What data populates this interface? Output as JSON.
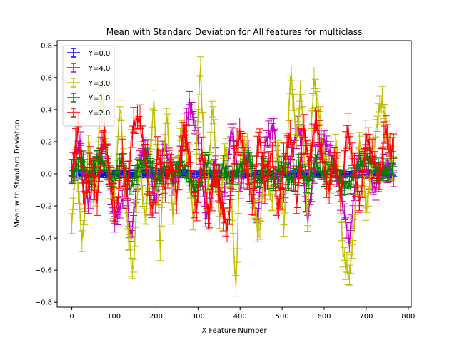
{
  "chart_data": {
    "type": "errorbar",
    "title": "Mean with Standard Deviation for All features for multiclass",
    "xlabel": "X Feature Number",
    "ylabel": "Mean with Standard Deviation",
    "xlim": [
      -35,
      807
    ],
    "ylim": [
      -0.83,
      0.83
    ],
    "xticks": [
      0,
      100,
      200,
      300,
      400,
      500,
      600,
      700,
      800
    ],
    "yticks": [
      -0.8,
      -0.6,
      -0.4,
      -0.2,
      0.0,
      0.2,
      0.4,
      0.6,
      0.8
    ],
    "xtick_labels": [
      "0",
      "100",
      "200",
      "300",
      "400",
      "500",
      "600",
      "700",
      "800"
    ],
    "ytick_labels": [
      "−0.8",
      "−0.6",
      "−0.4",
      "−0.2",
      "0.0",
      "0.2",
      "0.4",
      "0.6",
      "0.8"
    ],
    "legend_position": "top-left",
    "x_range": [
      0,
      767
    ],
    "series": [
      {
        "name": "Y=0.0",
        "color": "#0000ff",
        "key_points": [
          [
            0,
            0
          ],
          [
            100,
            0
          ],
          [
            200,
            0
          ],
          [
            300,
            0
          ],
          [
            400,
            0
          ],
          [
            500,
            0
          ],
          [
            600,
            0
          ],
          [
            700,
            0
          ],
          [
            767,
            0
          ]
        ],
        "std": 0.015
      },
      {
        "name": "Y=4.0",
        "color": "#bf00bf",
        "key_points": [
          [
            0,
            0.0
          ],
          [
            20,
            0.2
          ],
          [
            40,
            -0.2
          ],
          [
            60,
            0.1
          ],
          [
            80,
            0.2
          ],
          [
            100,
            -0.3
          ],
          [
            130,
            -0.1
          ],
          [
            140,
            -0.42
          ],
          [
            160,
            0.08
          ],
          [
            180,
            0.15
          ],
          [
            200,
            -0.2
          ],
          [
            220,
            0.2
          ],
          [
            240,
            -0.05
          ],
          [
            260,
            0.1
          ],
          [
            280,
            0.45
          ],
          [
            300,
            0.2
          ],
          [
            320,
            -0.3
          ],
          [
            340,
            0.1
          ],
          [
            360,
            -0.2
          ],
          [
            380,
            0.3
          ],
          [
            400,
            -0.1
          ],
          [
            420,
            0.15
          ],
          [
            440,
            -0.3
          ],
          [
            460,
            0.2
          ],
          [
            480,
            0.3
          ],
          [
            500,
            -0.2
          ],
          [
            520,
            0.1
          ],
          [
            540,
            0.3
          ],
          [
            560,
            -0.3
          ],
          [
            580,
            0.1
          ],
          [
            600,
            0.2
          ],
          [
            620,
            0.1
          ],
          [
            640,
            -0.15
          ],
          [
            660,
            -0.42
          ],
          [
            680,
            0.1
          ],
          [
            700,
            0.05
          ],
          [
            720,
            -0.1
          ],
          [
            740,
            0.05
          ],
          [
            767,
            0.0
          ]
        ],
        "std": 0.04
      },
      {
        "name": "Y=3.0",
        "color": "#bfbf00",
        "key_points": [
          [
            0,
            -0.3
          ],
          [
            10,
            0.1
          ],
          [
            25,
            -0.45
          ],
          [
            40,
            0.2
          ],
          [
            55,
            -0.2
          ],
          [
            70,
            0.55
          ],
          [
            85,
            0.1
          ],
          [
            100,
            -0.2
          ],
          [
            115,
            0.45
          ],
          [
            130,
            -0.25
          ],
          [
            145,
            -0.65
          ],
          [
            160,
            0.1
          ],
          [
            175,
            -0.3
          ],
          [
            195,
            0.45
          ],
          [
            210,
            -0.45
          ],
          [
            225,
            0.4
          ],
          [
            240,
            -0.25
          ],
          [
            260,
            0.3
          ],
          [
            275,
            0.1
          ],
          [
            290,
            -0.3
          ],
          [
            305,
            0.7
          ],
          [
            320,
            -0.2
          ],
          [
            335,
            0.45
          ],
          [
            350,
            -0.3
          ],
          [
            365,
            0.2
          ],
          [
            380,
            -0.2
          ],
          [
            390,
            -0.72
          ],
          [
            400,
            0.1
          ],
          [
            415,
            0.2
          ],
          [
            430,
            -0.1
          ],
          [
            445,
            -0.4
          ],
          [
            460,
            0.1
          ],
          [
            475,
            -0.2
          ],
          [
            490,
            0.2
          ],
          [
            505,
            -0.35
          ],
          [
            520,
            0.65
          ],
          [
            535,
            0.2
          ],
          [
            545,
            0.55
          ],
          [
            560,
            -0.3
          ],
          [
            575,
            0.6
          ],
          [
            590,
            0.35
          ],
          [
            600,
            0.1
          ],
          [
            615,
            -0.05
          ],
          [
            630,
            0.2
          ],
          [
            645,
            -0.5
          ],
          [
            660,
            -0.65
          ],
          [
            670,
            -0.35
          ],
          [
            685,
            0.25
          ],
          [
            700,
            -0.25
          ],
          [
            715,
            0.1
          ],
          [
            730,
            0.4
          ],
          [
            740,
            0.45
          ],
          [
            750,
            0.2
          ],
          [
            767,
            0.0
          ]
        ],
        "std": 0.05
      },
      {
        "name": "Y=1.0",
        "color": "#007f00",
        "key_points": [
          [
            0,
            0.0
          ],
          [
            20,
            0.1
          ],
          [
            40,
            -0.05
          ],
          [
            60,
            0.1
          ],
          [
            80,
            0.05
          ],
          [
            100,
            -0.05
          ],
          [
            120,
            0.1
          ],
          [
            140,
            -0.1
          ],
          [
            160,
            0.05
          ],
          [
            180,
            0.1
          ],
          [
            200,
            -0.05
          ],
          [
            220,
            0.05
          ],
          [
            240,
            0.0
          ],
          [
            260,
            0.08
          ],
          [
            280,
            -0.05
          ],
          [
            300,
            -0.1
          ],
          [
            320,
            0.08
          ],
          [
            340,
            -0.05
          ],
          [
            360,
            0.05
          ],
          [
            380,
            -0.05
          ],
          [
            400,
            0.05
          ],
          [
            420,
            0.1
          ],
          [
            440,
            -0.05
          ],
          [
            460,
            0.05
          ],
          [
            480,
            -0.05
          ],
          [
            500,
            0.05
          ],
          [
            520,
            -0.05
          ],
          [
            540,
            0.05
          ],
          [
            560,
            -0.05
          ],
          [
            580,
            0.05
          ],
          [
            600,
            0.0
          ],
          [
            620,
            0.05
          ],
          [
            640,
            -0.05
          ],
          [
            660,
            -0.08
          ],
          [
            680,
            0.05
          ],
          [
            700,
            0.1
          ],
          [
            720,
            0.05
          ],
          [
            740,
            0.0
          ],
          [
            767,
            0.05
          ]
        ],
        "std": 0.03
      },
      {
        "name": "Y=2.0",
        "color": "#ff0000",
        "key_points": [
          [
            0,
            0.0
          ],
          [
            15,
            0.3
          ],
          [
            30,
            -0.2
          ],
          [
            45,
            0.1
          ],
          [
            60,
            -0.15
          ],
          [
            75,
            0.25
          ],
          [
            90,
            0.0
          ],
          [
            105,
            -0.25
          ],
          [
            120,
            0.1
          ],
          [
            130,
            -0.15
          ],
          [
            145,
            0.3
          ],
          [
            160,
            0.35
          ],
          [
            175,
            0.1
          ],
          [
            190,
            -0.25
          ],
          [
            205,
            0.15
          ],
          [
            220,
            -0.1
          ],
          [
            235,
            0.1
          ],
          [
            250,
            -0.15
          ],
          [
            265,
            0.3
          ],
          [
            280,
            0.1
          ],
          [
            295,
            -0.25
          ],
          [
            310,
            0.15
          ],
          [
            325,
            -0.3
          ],
          [
            340,
            0.05
          ],
          [
            355,
            -0.2
          ],
          [
            370,
            -0.35
          ],
          [
            385,
            0.1
          ],
          [
            400,
            0.25
          ],
          [
            415,
            0.05
          ],
          [
            430,
            -0.2
          ],
          [
            445,
            0.25
          ],
          [
            460,
            -0.1
          ],
          [
            475,
            0.15
          ],
          [
            490,
            -0.25
          ],
          [
            505,
            0.1
          ],
          [
            520,
            0.25
          ],
          [
            535,
            -0.2
          ],
          [
            550,
            0.3
          ],
          [
            565,
            0.05
          ],
          [
            580,
            0.35
          ],
          [
            595,
            0.1
          ],
          [
            610,
            -0.1
          ],
          [
            625,
            0.1
          ],
          [
            640,
            -0.15
          ],
          [
            655,
            0.3
          ],
          [
            670,
            0.05
          ],
          [
            685,
            -0.2
          ],
          [
            700,
            0.25
          ],
          [
            715,
            0.1
          ],
          [
            730,
            -0.05
          ],
          [
            745,
            0.3
          ],
          [
            760,
            0.1
          ],
          [
            767,
            0.25
          ]
        ],
        "std": 0.06
      }
    ]
  }
}
